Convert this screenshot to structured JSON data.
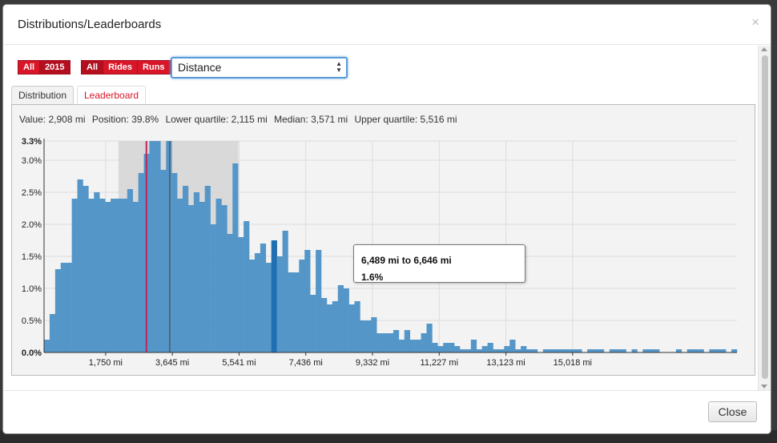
{
  "modal": {
    "title": "Distributions/Leaderboards",
    "close_symbol": "×"
  },
  "filters": {
    "year_group": [
      "All",
      "2015"
    ],
    "year_active": "2015",
    "type_group": [
      "All",
      "Rides",
      "Runs"
    ],
    "type_active": "All"
  },
  "select": {
    "value": "Distance"
  },
  "tabs": {
    "distribution": "Distribution",
    "leaderboard": "Leaderboard",
    "active": "Distribution"
  },
  "stats": {
    "value": "Value: 2,908 mi",
    "position": "Position: 39.8%",
    "lower_quartile": "Lower quartile: 2,115 mi",
    "median": "Median: 3,571 mi",
    "upper_quartile": "Upper quartile: 5,516 mi"
  },
  "tooltip": {
    "range": "6,489 mi to 6,646 mi",
    "value": "1.6%"
  },
  "footer": {
    "close_label": "Close"
  },
  "colors": {
    "bar": "#5596c9",
    "bar_highlight": "#1f6fb2",
    "value_line": "#c0235c",
    "median_line": "#555555",
    "iqr_band": "#d4d4d4",
    "brand_red": "#d91628"
  },
  "chart_data": {
    "type": "bar",
    "title": "",
    "xlabel": "",
    "ylabel": "",
    "ylim": [
      0,
      3.3
    ],
    "y_ticks": [
      "3.3%",
      "3.0%",
      "2.5%",
      "2.0%",
      "1.5%",
      "1.0%",
      "0.5%",
      "0.0%"
    ],
    "y_tick_values": [
      3.3,
      3.0,
      2.5,
      2.0,
      1.5,
      1.0,
      0.5,
      0.0
    ],
    "x_tick_labels": [
      "1,750 mi",
      "3,645 mi",
      "5,541 mi",
      "7,436 mi",
      "9,332 mi",
      "11,227 mi",
      "13,123 mi",
      "15,018 mi"
    ],
    "x_tick_values": [
      1750,
      3645,
      5541,
      7436,
      9332,
      11227,
      13123,
      15018
    ],
    "bin_width_mi": 157.5,
    "x_min_mi": 0,
    "values": [
      0.2,
      0.6,
      1.3,
      1.4,
      1.4,
      2.4,
      2.7,
      2.6,
      2.4,
      2.5,
      2.4,
      2.35,
      2.4,
      2.4,
      2.4,
      2.55,
      2.35,
      2.8,
      3.1,
      3.3,
      3.3,
      2.85,
      3.3,
      2.8,
      2.4,
      2.6,
      2.3,
      2.5,
      2.35,
      2.6,
      2.0,
      2.4,
      2.3,
      1.85,
      2.95,
      1.8,
      2.05,
      1.45,
      1.55,
      1.7,
      1.4,
      1.75,
      1.5,
      1.9,
      1.25,
      1.25,
      1.45,
      1.6,
      0.9,
      1.6,
      0.85,
      0.75,
      0.8,
      1.05,
      1.0,
      0.75,
      0.8,
      0.5,
      0.5,
      0.55,
      0.3,
      0.3,
      0.3,
      0.35,
      0.2,
      0.35,
      0.2,
      0.2,
      0.3,
      0.45,
      0.15,
      0.1,
      0.15,
      0.15,
      0.1,
      0.05,
      0.05,
      0.2,
      0.05,
      0.1,
      0.15,
      0.05,
      0.05,
      0.1,
      0.2,
      0.05,
      0.1,
      0.05,
      0.05,
      0.0,
      0.05,
      0.05,
      0.05,
      0.05,
      0.05,
      0.05,
      0.05,
      0.0,
      0.05,
      0.05,
      0.05,
      0.0,
      0.05,
      0.05,
      0.05,
      0.0,
      0.05,
      0.0,
      0.05,
      0.05,
      0.05,
      0.0,
      0.0,
      0.0,
      0.05,
      0.0,
      0.05,
      0.05,
      0.05,
      0.0,
      0.05,
      0.05,
      0.05,
      0.0,
      0.05
    ],
    "highlight_range_mi": [
      6489,
      6646
    ],
    "highlight_value": 1.6,
    "value_marker_mi": 2908,
    "median_mi": 3571,
    "iqr_mi": [
      2115,
      5516
    ],
    "grid": true,
    "legend": "none"
  }
}
